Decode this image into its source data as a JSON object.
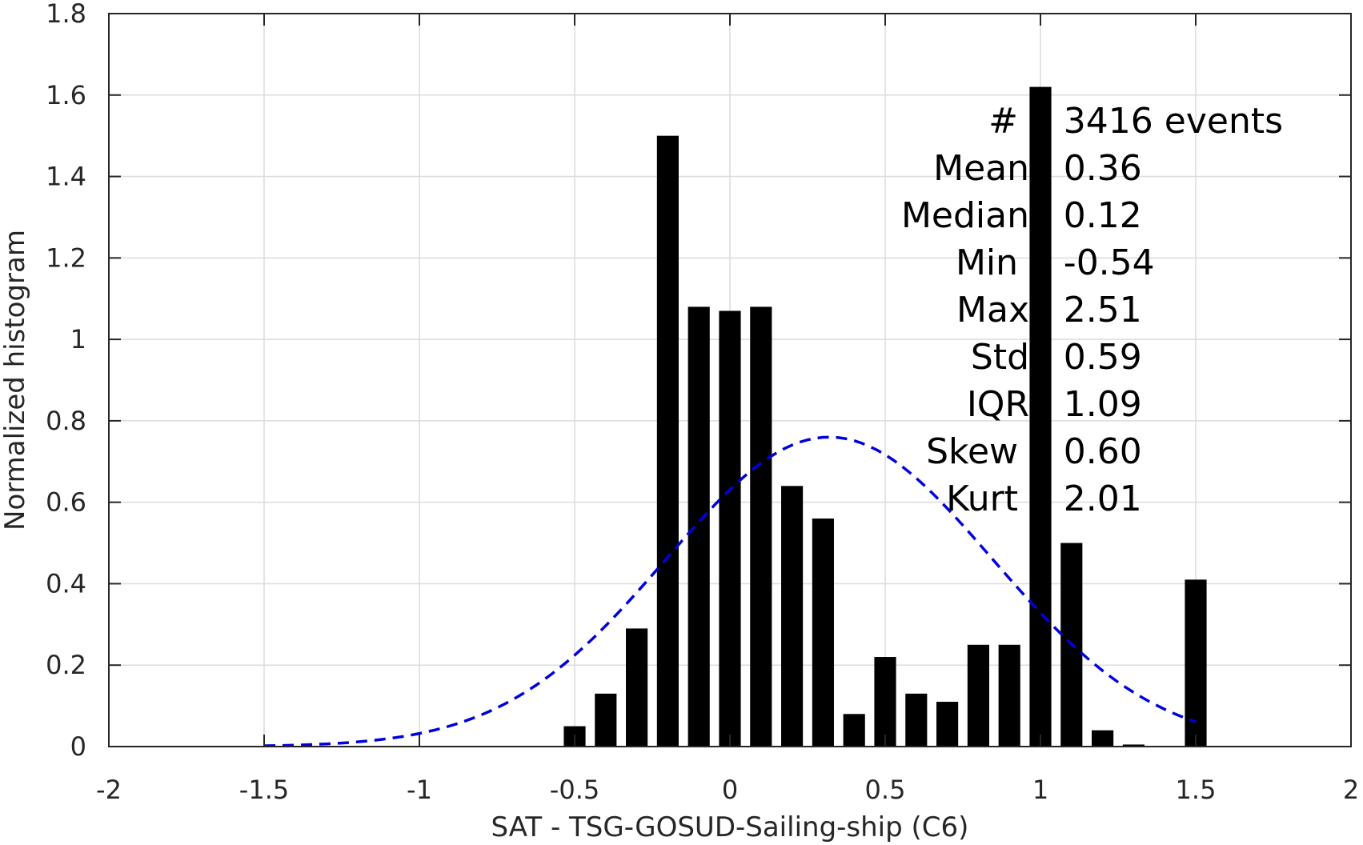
{
  "chart_data": {
    "type": "bar",
    "xlabel": "SAT - TSG-GOSUD-Sailing-ship (C6)",
    "ylabel": "Normalized histogram",
    "xlim": [
      -2,
      2
    ],
    "ylim": [
      0,
      1.8
    ],
    "xticks": [
      -2,
      -1.5,
      -1,
      -0.5,
      0,
      0.5,
      1,
      1.5,
      2
    ],
    "xtick_labels": [
      "-2",
      "-1.5",
      "-1",
      "-0.5",
      "0",
      "0.5",
      "1",
      "1.5",
      "2"
    ],
    "yticks": [
      0,
      0.2,
      0.4,
      0.6,
      0.8,
      1,
      1.2,
      1.4,
      1.6,
      1.8
    ],
    "ytick_labels": [
      "0",
      "0.2",
      "0.4",
      "0.6",
      "0.8",
      "1",
      "1.2",
      "1.4",
      "1.6",
      "1.8"
    ],
    "grid": true,
    "bin_width": 0.1,
    "bars": {
      "color": "#000000",
      "x": [
        -0.5,
        -0.4,
        -0.3,
        -0.2,
        -0.1,
        0.0,
        0.1,
        0.2,
        0.3,
        0.4,
        0.5,
        0.6,
        0.7,
        0.8,
        0.9,
        1.0,
        1.1,
        1.2,
        1.3,
        1.5
      ],
      "values": [
        0.05,
        0.13,
        0.29,
        1.5,
        1.08,
        1.07,
        1.08,
        0.64,
        0.56,
        0.08,
        0.22,
        0.13,
        0.11,
        0.25,
        0.25,
        1.62,
        0.5,
        0.04,
        0.005,
        0.41
      ]
    },
    "fit_curve": {
      "style": "dashed",
      "color": "#0000dd",
      "mean": 0.32,
      "peak": 0.76,
      "std": 0.525,
      "x_range": [
        -1.5,
        1.5
      ]
    },
    "stats": [
      {
        "label": "#  ",
        "value": ": 3416 events"
      },
      {
        "label": "Mean ",
        "value": ": 0.36"
      },
      {
        "label": "Median ",
        "value": ": 0.12"
      },
      {
        "label": "Min  ",
        "value": ": -0.54"
      },
      {
        "label": "Max ",
        "value": ": 2.51"
      },
      {
        "label": "Std ",
        "value": ": 0.59"
      },
      {
        "label": "IQR ",
        "value": ": 1.09"
      },
      {
        "label": "Skew  ",
        "value": ": 0.60"
      },
      {
        "label": "Kurt  ",
        "value": ": 2.01"
      }
    ]
  }
}
